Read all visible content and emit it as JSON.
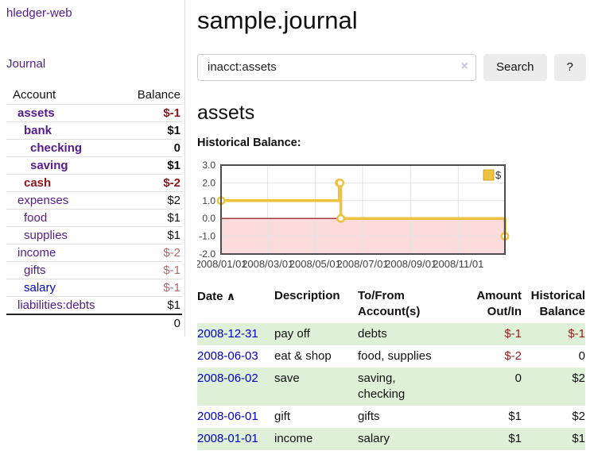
{
  "app": {
    "brand": "hledger-web"
  },
  "nav": {
    "journal": "Journal"
  },
  "sidebar": {
    "header": {
      "account": "Account",
      "balance": "Balance"
    },
    "accounts": [
      {
        "name": "assets",
        "indent": 1,
        "bold": true,
        "name_color": "purple",
        "balance": "$-1",
        "balance_color": "darkred"
      },
      {
        "name": "bank",
        "indent": 2,
        "bold": true,
        "name_color": "purple",
        "balance": "$1",
        "balance_color": "black"
      },
      {
        "name": "checking",
        "indent": 3,
        "bold": true,
        "name_color": "purple",
        "balance": "0",
        "balance_color": "black"
      },
      {
        "name": "saving",
        "indent": 3,
        "bold": true,
        "name_color": "purple",
        "balance": "$1",
        "balance_color": "black"
      },
      {
        "name": "cash",
        "indent": 2,
        "bold": true,
        "name_color": "darkred",
        "balance": "$-2",
        "balance_color": "darkred"
      },
      {
        "name": "expenses",
        "indent": 1,
        "bold": false,
        "name_color": "purple",
        "balance": "$2",
        "balance_color": "black"
      },
      {
        "name": "food",
        "indent": 2,
        "bold": false,
        "name_color": "purple",
        "balance": "$1",
        "balance_color": "black"
      },
      {
        "name": "supplies",
        "indent": 2,
        "bold": false,
        "name_color": "purple",
        "balance": "$1",
        "balance_color": "black"
      },
      {
        "name": "income",
        "indent": 1,
        "bold": false,
        "name_color": "purple",
        "balance": "$-2",
        "balance_color": "lightred"
      },
      {
        "name": "gifts",
        "indent": 2,
        "bold": false,
        "name_color": "purple",
        "balance": "$-1",
        "balance_color": "lightred"
      },
      {
        "name": "salary",
        "indent": 2,
        "bold": false,
        "name_color": "blue",
        "balance": "$-1",
        "balance_color": "lightred"
      },
      {
        "name": "liabilities:debts",
        "indent": 1,
        "bold": false,
        "name_color": "purple",
        "balance": "$1",
        "balance_color": "black"
      }
    ],
    "total": "0"
  },
  "main": {
    "title": "sample.journal",
    "search": {
      "value": "inacct:assets",
      "clear_icon": "×",
      "button_label": "Search",
      "help_label": "?"
    },
    "account_heading": "assets",
    "chart_heading": "Historical Balance:"
  },
  "chart_data": {
    "type": "line",
    "title": "Historical Balance:",
    "series": [
      {
        "name": "$",
        "color": "#edc240",
        "step": true,
        "points": [
          [
            "2008-01-01",
            1
          ],
          [
            "2008-06-01",
            2
          ],
          [
            "2008-06-02",
            2
          ],
          [
            "2008-06-03",
            0
          ],
          [
            "2008-12-31",
            -1
          ]
        ]
      }
    ],
    "ylim": [
      -2,
      3
    ],
    "yticks": [
      3,
      2,
      1,
      0,
      -1,
      -2
    ],
    "xticks": [
      "2008/01/01",
      "2008/03/01",
      "2008/05/01",
      "2008/07/01",
      "2008/09/01",
      "2008/11/01"
    ],
    "legend": {
      "label": "$",
      "position": "top-right"
    },
    "grid": true,
    "negative_region_color": "#fbdbdb",
    "zero_line_color": "#8b0000",
    "xlabel": "",
    "ylabel": ""
  },
  "register": {
    "header": {
      "date": "Date",
      "sort_icon": "∧",
      "description": "Description",
      "account_line1": "To/From",
      "account_line2": "Account(s)",
      "amount_line1": "Amount",
      "amount_line2": "Out/In",
      "balance_line1": "Historical",
      "balance_line2": "Balance"
    },
    "rows": [
      {
        "date": "2008-12-31",
        "description": "pay off",
        "accounts": [
          "debts"
        ],
        "amount": "$-1",
        "amount_neg": true,
        "balance": "$-1",
        "balance_neg": true
      },
      {
        "date": "2008-06-03",
        "description": "eat & shop",
        "accounts": [
          "food, supplies"
        ],
        "amount": "$-2",
        "amount_neg": true,
        "balance": "0",
        "balance_neg": false
      },
      {
        "date": "2008-06-02",
        "description": "save",
        "accounts": [
          "saving,",
          "checking"
        ],
        "amount": "0",
        "amount_neg": false,
        "balance": "$2",
        "balance_neg": false
      },
      {
        "date": "2008-06-01",
        "description": "gift",
        "accounts": [
          "gifts"
        ],
        "amount": "$1",
        "amount_neg": false,
        "balance": "$2",
        "balance_neg": false
      },
      {
        "date": "2008-01-01",
        "description": "income",
        "accounts": [
          "salary"
        ],
        "amount": "$1",
        "amount_neg": false,
        "balance": "$1",
        "balance_neg": false
      }
    ]
  },
  "colors": {
    "link_purple": "#551a8b",
    "link_blue": "#0000cc",
    "negative_strong": "#8e1515",
    "negative_soft": "#b36a6a",
    "row_highlight_green": "#dff0d8",
    "series_gold": "#edc240",
    "negative_region_pink": "#fbdbdb",
    "zero_line_red": "#8b0000",
    "button_bg": "#ececec"
  }
}
